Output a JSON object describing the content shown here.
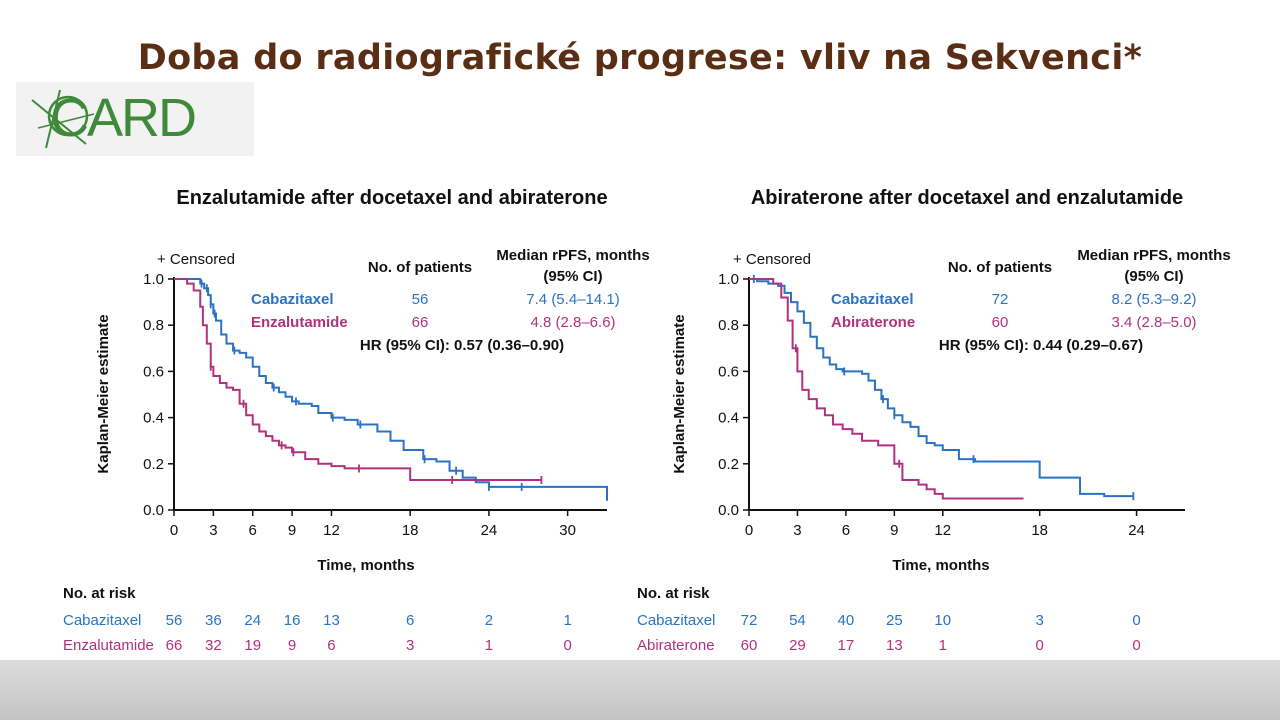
{
  "slide": {
    "title": "Doba do radiografické progrese: vliv na Sekvenci*",
    "logo_text": "CARD"
  },
  "colors": {
    "blue": "#2b73c2",
    "magenta": "#b0327f",
    "title": "#5a2e14",
    "logo": "#3f8a3a"
  },
  "chart_data": [
    {
      "type": "line",
      "title": "Enzalutamide after docetaxel and abiraterone",
      "xlabel": "Time, months",
      "ylabel": "Kaplan-Meier estimate",
      "xlim": [
        0,
        33
      ],
      "ylim": [
        0,
        1.0
      ],
      "xticks": [
        0,
        3,
        6,
        9,
        12,
        18,
        24,
        30
      ],
      "yticks": [
        "0.0",
        "0.2",
        "0.4",
        "0.6",
        "0.8",
        "1.0"
      ],
      "censored_label": "+ Censored",
      "table_header": {
        "patients": "No. of patients",
        "median_l1": "Median rPFS, months",
        "median_l2": "(95% CI)"
      },
      "hr_text": "HR (95% CI): 0.57 (0.36–0.90)",
      "series": [
        {
          "name": "Cabazitaxel",
          "color": "#2b73c2",
          "patients": "56",
          "median": "7.4 (5.4–14.1)",
          "x": [
            0,
            1.8,
            2.0,
            2.3,
            2.6,
            2.8,
            3.0,
            3.2,
            3.6,
            4.0,
            4.5,
            5.0,
            5.5,
            6.0,
            6.5,
            7.0,
            7.5,
            8.0,
            8.5,
            9.0,
            9.5,
            10.0,
            10.5,
            11.0,
            12.0,
            13.0,
            14.0,
            15.5,
            16.5,
            17.5,
            19.0,
            20.0,
            21.0,
            22.0,
            23.0,
            24.0,
            26.0,
            28.0,
            32.5,
            33.0
          ],
          "y": [
            1.0,
            1.0,
            0.98,
            0.96,
            0.93,
            0.89,
            0.85,
            0.82,
            0.76,
            0.72,
            0.69,
            0.68,
            0.66,
            0.62,
            0.58,
            0.55,
            0.53,
            0.51,
            0.49,
            0.47,
            0.46,
            0.46,
            0.45,
            0.42,
            0.4,
            0.39,
            0.37,
            0.34,
            0.3,
            0.26,
            0.22,
            0.21,
            0.17,
            0.14,
            0.12,
            0.1,
            0.1,
            0.1,
            0.1,
            0.04
          ],
          "censor_x": [
            2.1,
            2.5,
            2.8,
            3.1,
            4.6,
            7.6,
            9.3,
            12.1,
            14.2,
            19.1,
            21.5,
            24.0,
            26.5
          ]
        },
        {
          "name": "Enzalutamide",
          "color": "#b0327f",
          "patients": "66",
          "median": "4.8 (2.8–6.6)",
          "x": [
            0,
            1.0,
            1.5,
            2.0,
            2.2,
            2.5,
            2.8,
            3.0,
            3.5,
            4.0,
            4.5,
            5.0,
            5.5,
            6.0,
            6.5,
            7.0,
            7.5,
            8.0,
            8.5,
            9.0,
            10.0,
            11.0,
            12.0,
            13.0,
            15.0,
            18.0,
            20.0,
            22.0,
            24.0,
            26.0,
            28.0
          ],
          "y": [
            1.0,
            0.98,
            0.95,
            0.88,
            0.8,
            0.72,
            0.62,
            0.58,
            0.55,
            0.53,
            0.52,
            0.46,
            0.41,
            0.37,
            0.34,
            0.32,
            0.3,
            0.28,
            0.27,
            0.25,
            0.22,
            0.2,
            0.19,
            0.18,
            0.18,
            0.13,
            0.13,
            0.13,
            0.13,
            0.13,
            0.13
          ],
          "censor_x": [
            2.8,
            5.3,
            8.2,
            9.1,
            14.1,
            21.2,
            28.0
          ]
        }
      ],
      "at_risk": {
        "label": "No. at risk",
        "x": [
          0,
          3,
          6,
          9,
          12,
          18,
          24,
          30
        ],
        "rows": [
          {
            "name": "Cabazitaxel",
            "values": [
              "56",
              "36",
              "24",
              "16",
              "13",
              "6",
              "2",
              "1"
            ]
          },
          {
            "name": "Enzalutamide",
            "values": [
              "66",
              "32",
              "19",
              "9",
              "6",
              "3",
              "1",
              "0"
            ]
          }
        ]
      }
    },
    {
      "type": "line",
      "title": "Abiraterone after docetaxel and enzalutamide",
      "xlabel": "Time, months",
      "ylabel": "Kaplan-Meier estimate",
      "xlim": [
        0,
        27
      ],
      "ylim": [
        0,
        1.0
      ],
      "xticks": [
        0,
        3,
        6,
        9,
        12,
        18,
        24
      ],
      "yticks": [
        "0.0",
        "0.2",
        "0.4",
        "0.6",
        "0.8",
        "1.0"
      ],
      "censored_label": "+ Censored",
      "table_header": {
        "patients": "No. of patients",
        "median_l1": "Median rPFS, months",
        "median_l2": "(95% CI)"
      },
      "hr_text": "HR (95% CI): 0.44 (0.29–0.67)",
      "series": [
        {
          "name": "Cabazitaxel",
          "color": "#2b73c2",
          "patients": "72",
          "median": "8.2 (5.3–9.2)",
          "x": [
            0,
            0.5,
            1.2,
            1.8,
            2.2,
            2.6,
            3.0,
            3.4,
            3.8,
            4.2,
            4.6,
            5.0,
            5.4,
            5.8,
            6.5,
            7.0,
            7.4,
            7.8,
            8.2,
            8.6,
            9.0,
            9.5,
            10.0,
            10.5,
            11.0,
            11.5,
            12.0,
            13.0,
            14.0,
            16.0,
            18.0,
            20.0,
            20.5,
            22.0,
            23.8
          ],
          "y": [
            1.0,
            0.99,
            0.98,
            0.97,
            0.94,
            0.9,
            0.86,
            0.81,
            0.75,
            0.7,
            0.66,
            0.63,
            0.61,
            0.6,
            0.6,
            0.59,
            0.56,
            0.52,
            0.48,
            0.44,
            0.41,
            0.38,
            0.36,
            0.32,
            0.29,
            0.28,
            0.26,
            0.22,
            0.21,
            0.21,
            0.14,
            0.14,
            0.07,
            0.06,
            0.06
          ],
          "censor_x": [
            0.3,
            5.9,
            8.3,
            9.0,
            13.9,
            23.8
          ]
        },
        {
          "name": "Abiraterone",
          "color": "#b0327f",
          "patients": "60",
          "median": "3.4 (2.8–5.0)",
          "x": [
            0,
            1.5,
            2.0,
            2.4,
            2.7,
            3.0,
            3.3,
            3.7,
            4.2,
            4.7,
            5.2,
            5.8,
            6.4,
            7.0,
            8.0,
            8.5,
            9.0,
            9.5,
            10.5,
            11.0,
            11.5,
            12.0,
            13.0,
            17.0
          ],
          "y": [
            1.0,
            0.98,
            0.92,
            0.82,
            0.7,
            0.6,
            0.52,
            0.48,
            0.44,
            0.41,
            0.37,
            0.35,
            0.33,
            0.3,
            0.28,
            0.28,
            0.2,
            0.13,
            0.11,
            0.09,
            0.07,
            0.05,
            0.05,
            0.05
          ],
          "censor_x": [
            2.9,
            9.3
          ]
        }
      ],
      "at_risk": {
        "label": "No. at risk",
        "x": [
          0,
          3,
          6,
          9,
          12,
          18,
          24
        ],
        "rows": [
          {
            "name": "Cabazitaxel",
            "values": [
              "72",
              "54",
              "40",
              "25",
              "10",
              "3",
              "0"
            ]
          },
          {
            "name": "Abiraterone",
            "values": [
              "60",
              "29",
              "17",
              "13",
              "1",
              "0",
              "0"
            ]
          }
        ]
      }
    }
  ]
}
